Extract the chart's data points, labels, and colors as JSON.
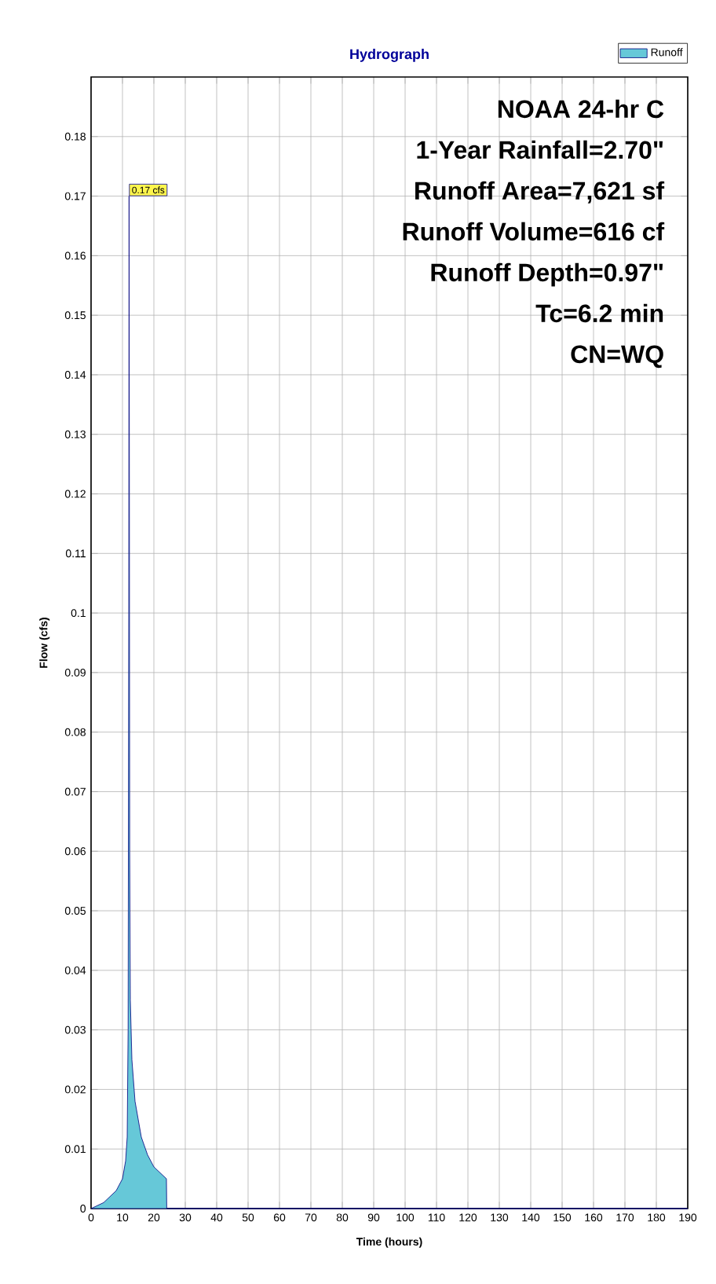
{
  "chart_data": {
    "type": "area",
    "title": "Hydrograph",
    "xlabel": "Time (hours)",
    "ylabel": "Flow (cfs)",
    "xlim": [
      0,
      190
    ],
    "ylim": [
      0,
      0.19
    ],
    "xticks": [
      0,
      10,
      20,
      30,
      40,
      50,
      60,
      70,
      80,
      90,
      100,
      110,
      120,
      130,
      140,
      150,
      160,
      170,
      180,
      190
    ],
    "yticks": [
      0,
      0.01,
      0.02,
      0.03,
      0.04,
      0.05,
      0.06,
      0.07,
      0.08,
      0.09,
      0.1,
      0.11,
      0.12,
      0.13,
      0.14,
      0.15,
      0.16,
      0.17,
      0.18
    ],
    "grid": true,
    "legend": "top right",
    "series": [
      {
        "name": "Runoff",
        "color": "#66c8d8",
        "x": [
          0,
          2,
          4,
          6,
          8,
          10,
          11,
          11.5,
          11.8,
          12.0,
          12.1,
          12.2,
          12.3,
          12.5,
          13,
          14,
          16,
          18,
          20,
          22,
          24,
          24.1,
          190
        ],
        "values": [
          0,
          0.0005,
          0.001,
          0.002,
          0.003,
          0.005,
          0.008,
          0.012,
          0.03,
          0.1,
          0.17,
          0.12,
          0.06,
          0.035,
          0.025,
          0.018,
          0.012,
          0.009,
          0.007,
          0.006,
          0.005,
          0,
          0
        ]
      }
    ],
    "annotations": [
      {
        "text": "0.17 cfs",
        "x": 12.1,
        "y": 0.17
      },
      "NOAA 24-hr C",
      "1-Year Rainfall=2.70\"",
      "Runoff Area=7,621 sf",
      "Runoff Volume=616 cf",
      "Runoff Depth=0.97\"",
      "Tc=6.2 min",
      "CN=WQ"
    ]
  }
}
